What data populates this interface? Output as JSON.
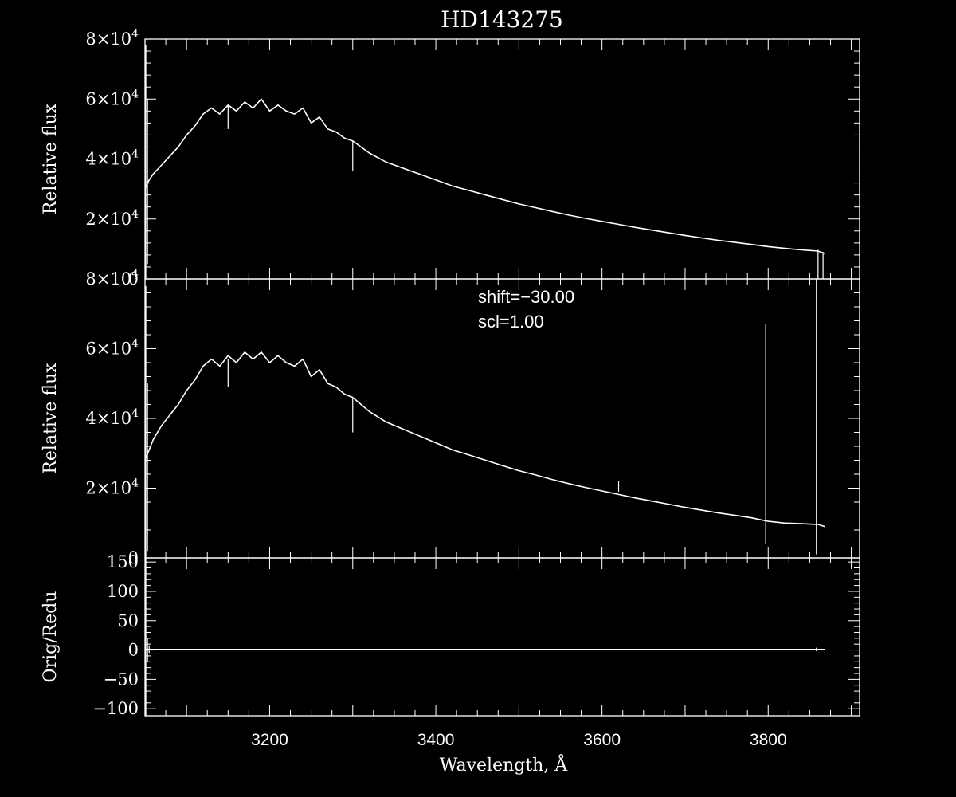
{
  "chart_data": {
    "title": "HD143275",
    "xlabel": "Wavelength, Å",
    "type": "line",
    "grid": false,
    "background": "#000000",
    "foreground": "#ffffff",
    "xlim": [
      3050,
      3910
    ],
    "x_ticks": [
      "3200",
      "3400",
      "3600",
      "3800"
    ],
    "x_tick_values": [
      3200,
      3400,
      3600,
      3800
    ],
    "panels": [
      {
        "id": "original",
        "ylabel": "Relative flux",
        "ylim": [
          0,
          80000
        ],
        "y_tick_values": [
          0,
          20000,
          40000,
          60000,
          80000
        ],
        "y_tick_labels": [
          {
            "mant": "0",
            "exp": ""
          },
          {
            "mant": "2×10",
            "exp": "4"
          },
          {
            "mant": "4×10",
            "exp": "4"
          },
          {
            "mant": "6×10",
            "exp": "4"
          },
          {
            "mant": "8×10",
            "exp": "4"
          }
        ],
        "series": {
          "x": [
            3050,
            3055,
            3060,
            3070,
            3080,
            3090,
            3100,
            3110,
            3120,
            3130,
            3140,
            3150,
            3160,
            3170,
            3180,
            3190,
            3200,
            3210,
            3220,
            3230,
            3240,
            3250,
            3260,
            3270,
            3280,
            3290,
            3300,
            3310,
            3320,
            3340,
            3360,
            3380,
            3400,
            3420,
            3440,
            3460,
            3480,
            3500,
            3520,
            3540,
            3560,
            3580,
            3600,
            3620,
            3640,
            3660,
            3680,
            3700,
            3720,
            3740,
            3760,
            3780,
            3800,
            3820,
            3840,
            3860,
            3868
          ],
          "y": [
            30000,
            33000,
            35000,
            38000,
            41000,
            44000,
            48000,
            51000,
            55000,
            57000,
            55000,
            58000,
            56000,
            59000,
            57000,
            60000,
            56000,
            58000,
            56000,
            55000,
            57000,
            52000,
            54000,
            50000,
            49000,
            47000,
            46000,
            44000,
            42000,
            39000,
            37000,
            35000,
            33000,
            31000,
            29500,
            28000,
            26500,
            25000,
            23800,
            22500,
            21300,
            20200,
            19200,
            18200,
            17200,
            16300,
            15400,
            14500,
            13700,
            12900,
            12200,
            11500,
            10800,
            10200,
            9700,
            9300,
            8500
          ]
        },
        "spikes": [
          {
            "x": 3051,
            "y_low": 0,
            "y_high": 78000
          },
          {
            "x": 3053,
            "y_low": 5000,
            "y_high": 60000
          },
          {
            "x": 3150,
            "y_low": 50000,
            "y_high": 58000
          },
          {
            "x": 3300,
            "y_low": 36000,
            "y_high": 46000
          },
          {
            "x": 3860,
            "y_low": 0,
            "y_high": 9700
          },
          {
            "x": 3866,
            "y_low": 0,
            "y_high": 9000
          }
        ]
      },
      {
        "id": "reduced",
        "ylabel": "Relative flux",
        "ylim": [
          0,
          80000
        ],
        "y_tick_values": [
          0,
          20000,
          40000,
          60000,
          80000
        ],
        "y_tick_labels": [
          {
            "mant": "0",
            "exp": ""
          },
          {
            "mant": "2×10",
            "exp": "4"
          },
          {
            "mant": "4×10",
            "exp": "4"
          },
          {
            "mant": "6×10",
            "exp": "4"
          },
          {
            "mant": "8×10",
            "exp": "4"
          }
        ],
        "annotations": [
          "shift=−30.00",
          "scl=1.00"
        ],
        "series": {
          "x": [
            3050,
            3055,
            3060,
            3070,
            3080,
            3090,
            3100,
            3110,
            3120,
            3130,
            3140,
            3150,
            3160,
            3170,
            3180,
            3190,
            3200,
            3210,
            3220,
            3230,
            3240,
            3250,
            3260,
            3270,
            3280,
            3290,
            3300,
            3310,
            3320,
            3340,
            3360,
            3380,
            3400,
            3420,
            3440,
            3460,
            3480,
            3500,
            3520,
            3540,
            3560,
            3580,
            3600,
            3620,
            3640,
            3660,
            3680,
            3700,
            3720,
            3740,
            3760,
            3780,
            3800,
            3820,
            3840,
            3860,
            3868
          ],
          "y": [
            28000,
            31000,
            34000,
            38000,
            41000,
            44000,
            48000,
            51000,
            55000,
            57000,
            55000,
            58000,
            56000,
            59000,
            57000,
            59000,
            56000,
            58000,
            56000,
            55000,
            57000,
            52000,
            54000,
            50000,
            49000,
            47000,
            46000,
            44000,
            42000,
            39000,
            37000,
            35000,
            33000,
            31000,
            29500,
            28000,
            26500,
            25000,
            23800,
            22500,
            21300,
            20200,
            19200,
            18200,
            17200,
            16300,
            15400,
            14500,
            13700,
            12900,
            12200,
            11500,
            10500,
            10000,
            9800,
            9600,
            9000
          ]
        },
        "spikes": [
          {
            "x": 3051,
            "y_low": 0,
            "y_high": 78000
          },
          {
            "x": 3053,
            "y_low": 2000,
            "y_high": 50000
          },
          {
            "x": 3150,
            "y_low": 49000,
            "y_high": 57000
          },
          {
            "x": 3300,
            "y_low": 36000,
            "y_high": 46000
          },
          {
            "x": 3620,
            "y_low": 19000,
            "y_high": 22000
          },
          {
            "x": 3797,
            "y_low": 4000,
            "y_high": 67000
          },
          {
            "x": 3858,
            "y_low": 1000,
            "y_high": 80000
          }
        ]
      },
      {
        "id": "ratio",
        "ylabel": "Orig/Redu",
        "ylim": [
          -112,
          157
        ],
        "y_tick_values": [
          -100,
          -50,
          0,
          50,
          100,
          150
        ],
        "y_tick_labels": [
          {
            "mant": "−100",
            "exp": ""
          },
          {
            "mant": "−50",
            "exp": ""
          },
          {
            "mant": "0",
            "exp": ""
          },
          {
            "mant": "50",
            "exp": ""
          },
          {
            "mant": "100",
            "exp": ""
          },
          {
            "mant": "150",
            "exp": ""
          }
        ],
        "series": {
          "x": [
            3050,
            3868
          ],
          "y": [
            1,
            1
          ]
        },
        "spikes": [
          {
            "x": 3051,
            "y_low": -112,
            "y_high": 157
          },
          {
            "x": 3053,
            "y_low": -20,
            "y_high": 20
          },
          {
            "x": 3055,
            "y_low": -5,
            "y_high": 8
          },
          {
            "x": 3858,
            "y_low": -2,
            "y_high": 4
          }
        ]
      }
    ]
  }
}
